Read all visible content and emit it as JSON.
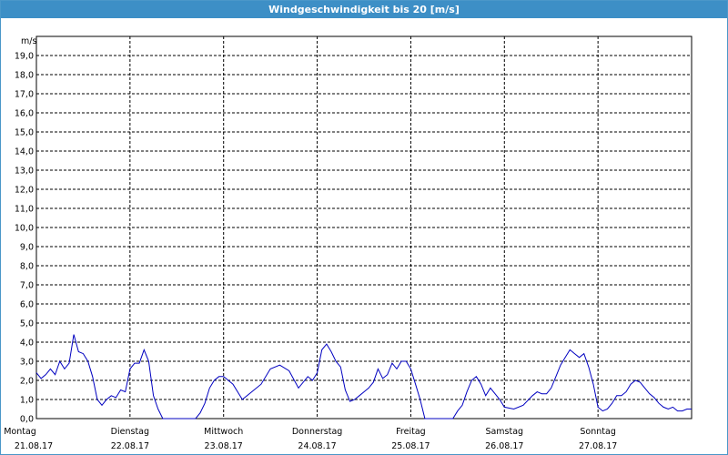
{
  "window": {
    "title": "Windgeschwindigkeit bis 20 [m/s]"
  },
  "chart_data": {
    "type": "line",
    "title": "Windgeschwindigkeit bis 20 [m/s]",
    "ylabel": "m/s",
    "ylim": [
      0,
      20
    ],
    "yticks": [
      "0,0",
      "1,0",
      "2,0",
      "3,0",
      "4,0",
      "5,0",
      "6,0",
      "7,0",
      "8,0",
      "9,0",
      "10,0",
      "11,0",
      "12,0",
      "13,0",
      "14,0",
      "15,0",
      "16,0",
      "17,0",
      "18,0",
      "19,0"
    ],
    "days": [
      {
        "day": "Montag",
        "date": "21.08.17"
      },
      {
        "day": "Dienstag",
        "date": "22.08.17"
      },
      {
        "day": "Mittwoch",
        "date": "23.08.17"
      },
      {
        "day": "Donnerstag",
        "date": "24.08.17"
      },
      {
        "day": "Freitag",
        "date": "25.08.17"
      },
      {
        "day": "Samstag",
        "date": "26.08.17"
      },
      {
        "day": "Sonntag",
        "date": "27.08.17"
      }
    ],
    "grid": true,
    "line_color": "#0000c0",
    "series": [
      {
        "x": [
          0,
          0.05,
          0.1,
          0.15,
          0.2,
          0.25,
          0.3,
          0.35,
          0.4,
          0.45,
          0.5,
          0.55,
          0.6,
          0.65,
          0.7,
          0.75,
          0.8,
          0.85,
          0.9,
          0.95,
          1.0,
          1.05,
          1.1,
          1.15,
          1.2,
          1.25,
          1.3,
          1.35,
          1.4,
          1.45,
          1.5,
          1.55,
          1.6,
          1.65,
          1.7,
          1.75,
          1.8,
          1.85,
          1.9,
          1.95,
          2.0,
          2.1,
          2.2,
          2.3,
          2.4,
          2.5,
          2.6,
          2.7,
          2.8,
          2.9,
          2.95,
          3.0,
          3.05,
          3.1,
          3.15,
          3.2,
          3.25,
          3.3,
          3.35,
          3.4,
          3.45,
          3.5,
          3.55,
          3.6,
          3.65,
          3.7,
          3.75,
          3.8,
          3.85,
          3.9,
          3.95,
          4.0,
          4.05,
          4.1,
          4.15,
          4.2,
          4.25,
          4.3,
          4.35,
          4.4,
          4.45,
          4.5,
          4.55,
          4.6,
          4.65,
          4.7,
          4.75,
          4.8,
          4.85,
          4.9,
          4.95,
          5.0,
          5.1,
          5.2,
          5.3,
          5.35,
          5.4,
          5.45,
          5.5,
          5.55,
          5.6,
          5.65,
          5.7,
          5.75,
          5.8,
          5.85,
          5.9,
          5.95,
          6.0,
          6.05,
          6.1,
          6.15,
          6.2,
          6.25,
          6.3,
          6.35,
          6.4,
          6.45,
          6.5,
          6.55,
          6.6,
          6.65,
          6.7,
          6.75,
          6.8,
          6.85,
          6.9,
          6.95,
          7.0
        ],
        "values": [
          2.4,
          2.1,
          2.3,
          2.6,
          2.3,
          3.0,
          2.6,
          2.9,
          4.4,
          3.5,
          3.4,
          3.0,
          2.2,
          1.0,
          0.7,
          1.0,
          1.2,
          1.1,
          1.5,
          1.4,
          2.6,
          2.9,
          2.9,
          3.6,
          3.0,
          1.2,
          0.5,
          0.0,
          0.0,
          0.0,
          0.0,
          0.0,
          0.0,
          0.0,
          0.0,
          0.3,
          0.8,
          1.6,
          2.0,
          2.2,
          2.2,
          1.8,
          1.0,
          1.4,
          1.8,
          2.6,
          2.8,
          2.5,
          1.6,
          2.2,
          2.0,
          2.4,
          3.6,
          3.9,
          3.5,
          3.0,
          2.7,
          1.5,
          0.9,
          1.0,
          1.2,
          1.4,
          1.6,
          1.9,
          2.6,
          2.1,
          2.3,
          2.9,
          2.6,
          3.0,
          3.0,
          2.6,
          1.8,
          1.0,
          0.0,
          0.0,
          0.0,
          0.0,
          0.0,
          0.0,
          0.0,
          0.4,
          0.7,
          1.4,
          2.0,
          2.2,
          1.8,
          1.2,
          1.6,
          1.3,
          1.0,
          0.6,
          0.5,
          0.7,
          1.2,
          1.4,
          1.3,
          1.3,
          1.6,
          2.2,
          2.8,
          3.2,
          3.6,
          3.4,
          3.2,
          3.4,
          2.7,
          1.8,
          0.6,
          0.4,
          0.5,
          0.8,
          1.2,
          1.2,
          1.4,
          1.8,
          2.0,
          1.9,
          1.6,
          1.3,
          1.1,
          0.8,
          0.6,
          0.5,
          0.6,
          0.4,
          0.4,
          0.5,
          0.5
        ]
      }
    ]
  }
}
